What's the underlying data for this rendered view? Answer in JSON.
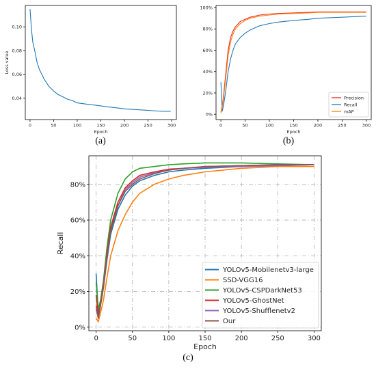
{
  "chart_data": [
    {
      "panel": "(a)",
      "type": "line",
      "xlabel": "Epoch",
      "ylabel": "Loss value",
      "xlim": [
        -10,
        310
      ],
      "ylim": [
        0.022,
        0.118
      ],
      "xticks": [
        "0",
        "50",
        "100",
        "150",
        "200",
        "250",
        "300"
      ],
      "yticks": [
        "0.04",
        "0.06",
        "0.08",
        "0.10"
      ],
      "grid": false,
      "series": [
        {
          "color": "#1f77b4",
          "x": [
            0,
            3,
            6,
            10,
            15,
            20,
            25,
            30,
            40,
            50,
            60,
            70,
            80,
            90,
            100,
            120,
            140,
            160,
            180,
            200,
            220,
            240,
            260,
            280,
            298
          ],
          "y": [
            0.115,
            0.098,
            0.087,
            0.08,
            0.07,
            0.064,
            0.06,
            0.056,
            0.05,
            0.046,
            0.043,
            0.041,
            0.039,
            0.038,
            0.036,
            0.035,
            0.034,
            0.033,
            0.032,
            0.031,
            0.0305,
            0.03,
            0.0295,
            0.029,
            0.029
          ]
        }
      ]
    },
    {
      "panel": "(b)",
      "type": "line",
      "xlabel": "Epoch",
      "ylabel": "",
      "xlim": [
        -10,
        310
      ],
      "ylim": [
        -5,
        102
      ],
      "xticks": [
        "0",
        "50",
        "100",
        "150",
        "200",
        "250",
        "300"
      ],
      "yticks": [
        "0%",
        "20%",
        "40%",
        "60%",
        "80%",
        "100%"
      ],
      "grid": false,
      "legend_position": "bottom-right",
      "series": [
        {
          "name": "Precision",
          "color": "#e8281c",
          "x": [
            0,
            3,
            6,
            10,
            15,
            20,
            25,
            30,
            40,
            50,
            60,
            70,
            80,
            100,
            120,
            150,
            180,
            200,
            250,
            300
          ],
          "y": [
            2,
            8,
            20,
            38,
            60,
            72,
            78,
            82,
            87,
            89,
            91,
            92,
            93,
            94,
            94.5,
            95,
            95.5,
            96,
            96,
            96
          ]
        },
        {
          "name": "Recall",
          "color": "#1f77b4",
          "x": [
            0,
            3,
            6,
            10,
            15,
            20,
            25,
            30,
            40,
            50,
            60,
            70,
            80,
            100,
            120,
            150,
            180,
            200,
            250,
            300
          ],
          "y": [
            30,
            3,
            10,
            22,
            40,
            52,
            60,
            66,
            72,
            76,
            79,
            81,
            83,
            85,
            86.5,
            88,
            89,
            90,
            91,
            92
          ]
        },
        {
          "name": "mAP",
          "color": "#ff7f0e",
          "x": [
            0,
            3,
            6,
            10,
            15,
            20,
            25,
            30,
            40,
            50,
            60,
            70,
            80,
            100,
            120,
            150,
            180,
            200,
            250,
            300
          ],
          "y": [
            1,
            6,
            17,
            34,
            55,
            68,
            75,
            80,
            85,
            88,
            90,
            91,
            92,
            93,
            94,
            94.5,
            95,
            95.5,
            95.5,
            95.5
          ]
        }
      ]
    },
    {
      "panel": "(c)",
      "type": "line",
      "xlabel": "Epoch",
      "ylabel": "Recall",
      "xlim": [
        -10,
        310
      ],
      "ylim": [
        -2,
        96
      ],
      "xticks": [
        "0",
        "50",
        "100",
        "150",
        "200",
        "250",
        "300"
      ],
      "yticks": [
        "0%",
        "20%",
        "40%",
        "60%",
        "80%"
      ],
      "grid": true,
      "legend_position": "bottom-right",
      "series": [
        {
          "name": "YOLOv5-Mobilenetv3-large",
          "color": "#1f77b4",
          "x": [
            0,
            3,
            6,
            10,
            15,
            20,
            30,
            40,
            50,
            60,
            80,
            100,
            120,
            150,
            200,
            250,
            300
          ],
          "y": [
            30,
            8,
            12,
            22,
            38,
            52,
            66,
            74,
            79,
            82,
            85,
            87,
            88,
            89,
            90,
            90.5,
            91
          ]
        },
        {
          "name": "SSD-VGG16",
          "color": "#ff7f0e",
          "x": [
            0,
            3,
            6,
            10,
            15,
            20,
            30,
            40,
            50,
            60,
            80,
            100,
            120,
            150,
            200,
            250,
            300
          ],
          "y": [
            5,
            3,
            8,
            15,
            28,
            40,
            54,
            63,
            70,
            75,
            80,
            83,
            85,
            87,
            89,
            90,
            90
          ]
        },
        {
          "name": "YOLOv5-CSPDarkNet53",
          "color": "#2ca02c",
          "x": [
            0,
            3,
            6,
            10,
            15,
            20,
            30,
            40,
            50,
            60,
            80,
            100,
            120,
            150,
            200,
            250,
            300
          ],
          "y": [
            25,
            10,
            15,
            26,
            45,
            60,
            75,
            83,
            87,
            89,
            90,
            91,
            91.5,
            92,
            92,
            91.5,
            91
          ]
        },
        {
          "name": "YOLOv5-GhostNet",
          "color": "#d62728",
          "x": [
            0,
            3,
            6,
            10,
            15,
            20,
            30,
            40,
            50,
            60,
            80,
            100,
            120,
            150,
            200,
            250,
            300
          ],
          "y": [
            18,
            6,
            13,
            24,
            42,
            56,
            70,
            78,
            82,
            85,
            87,
            88.5,
            89,
            90,
            90.5,
            91,
            91
          ]
        },
        {
          "name": "YOLOv5-Shufflenetv2",
          "color": "#9467bd",
          "x": [
            0,
            3,
            6,
            10,
            15,
            20,
            30,
            40,
            50,
            60,
            80,
            100,
            120,
            150,
            200,
            250,
            300
          ],
          "y": [
            10,
            5,
            12,
            23,
            40,
            54,
            68,
            77,
            81,
            84,
            86.5,
            88,
            89,
            89.5,
            90,
            90.5,
            91
          ]
        },
        {
          "name": "Our",
          "color": "#8c564b",
          "x": [
            0,
            3,
            6,
            10,
            15,
            20,
            30,
            40,
            50,
            60,
            80,
            100,
            120,
            150,
            200,
            250,
            300
          ],
          "y": [
            12,
            5,
            12,
            22,
            40,
            54,
            68,
            76,
            80,
            83,
            86,
            88,
            89,
            90,
            90.5,
            91,
            91
          ]
        }
      ]
    }
  ]
}
